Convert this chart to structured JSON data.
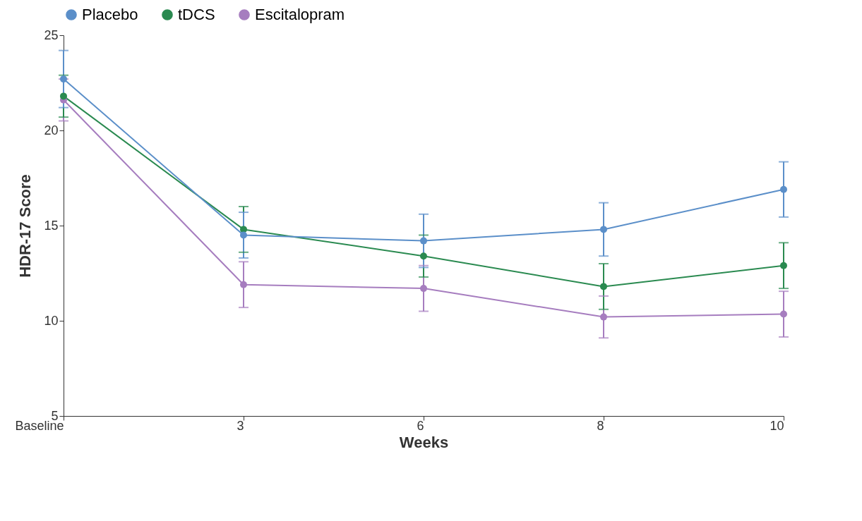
{
  "chart_data": {
    "type": "line",
    "xlabel": "Weeks",
    "ylabel": "HDR-17 Score",
    "categories": [
      "Baseline",
      "3",
      "6",
      "8",
      "10"
    ],
    "ylim": [
      5,
      25
    ],
    "yticks": [
      5,
      10,
      15,
      20,
      25
    ],
    "grid": false,
    "legend": "top",
    "marker": "circle",
    "line_style": "solid",
    "series": [
      {
        "name": "Placebo",
        "color": "#5b8fc9",
        "values": [
          22.7,
          14.5,
          14.2,
          14.8,
          16.9
        ],
        "errors": [
          1.5,
          1.2,
          1.4,
          1.4,
          1.45
        ]
      },
      {
        "name": "tDCS",
        "color": "#2a8a50",
        "values": [
          21.8,
          14.8,
          13.4,
          11.8,
          12.9
        ],
        "errors": [
          1.1,
          1.2,
          1.1,
          1.2,
          1.2
        ]
      },
      {
        "name": "Escitalopram",
        "color": "#a67dbf",
        "values": [
          21.6,
          11.9,
          11.7,
          10.2,
          10.35
        ],
        "errors": [
          1.1,
          1.2,
          1.2,
          1.1,
          1.2
        ]
      }
    ]
  }
}
